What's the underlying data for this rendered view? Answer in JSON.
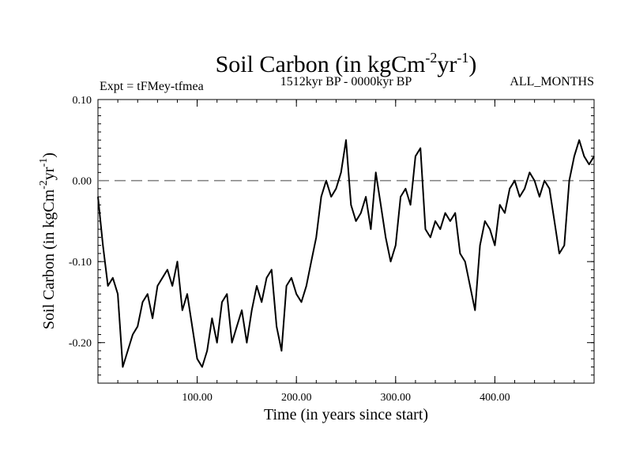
{
  "chart_data": {
    "type": "line",
    "title": "Soil Carbon (in kgCm",
    "title_unit_parts": [
      "-2",
      "yr",
      "-1",
      ")"
    ],
    "subtitle_left": "Expt = tFMey-tfmea",
    "subtitle_center": "1512kyr BP - 0000kyr BP",
    "subtitle_right": "ALL_MONTHS",
    "xlabel": "Time (in years since start)",
    "ylabel_parts": [
      "Soil Carbon (in kgCm",
      "-2",
      "yr",
      "-1",
      ")"
    ],
    "xlim": [
      0,
      500
    ],
    "ylim": [
      -0.25,
      0.1
    ],
    "xticks": [
      100,
      200,
      300,
      400
    ],
    "xtick_labels": [
      "100.00",
      "200.00",
      "300.00",
      "400.00"
    ],
    "yticks": [
      0.1,
      0.0,
      -0.1,
      -0.2
    ],
    "ytick_labels": [
      "0.10",
      "0.00",
      "-0.10",
      "-0.20"
    ],
    "reference_line": {
      "y": 0.0,
      "style": "dashed",
      "color": "#7f7f7f"
    },
    "series": [
      {
        "name": "Soil Carbon",
        "color": "#000000",
        "x": [
          0,
          5,
          10,
          15,
          20,
          25,
          30,
          35,
          40,
          45,
          50,
          55,
          60,
          65,
          70,
          75,
          80,
          85,
          90,
          95,
          100,
          105,
          110,
          115,
          120,
          125,
          130,
          135,
          140,
          145,
          150,
          155,
          160,
          165,
          170,
          175,
          180,
          185,
          190,
          195,
          200,
          205,
          210,
          215,
          220,
          225,
          230,
          235,
          240,
          245,
          250,
          255,
          260,
          265,
          270,
          275,
          280,
          285,
          290,
          295,
          300,
          305,
          310,
          315,
          320,
          325,
          330,
          335,
          340,
          345,
          350,
          355,
          360,
          365,
          370,
          375,
          380,
          385,
          390,
          395,
          400,
          405,
          410,
          415,
          420,
          425,
          430,
          435,
          440,
          445,
          450,
          455,
          460,
          465,
          470,
          475,
          480,
          485,
          490,
          495,
          500
        ],
        "y": [
          -0.02,
          -0.08,
          -0.13,
          -0.12,
          -0.14,
          -0.23,
          -0.21,
          -0.19,
          -0.18,
          -0.15,
          -0.14,
          -0.17,
          -0.13,
          -0.12,
          -0.11,
          -0.13,
          -0.1,
          -0.16,
          -0.14,
          -0.18,
          -0.22,
          -0.23,
          -0.21,
          -0.17,
          -0.2,
          -0.15,
          -0.14,
          -0.2,
          -0.18,
          -0.16,
          -0.2,
          -0.16,
          -0.13,
          -0.15,
          -0.12,
          -0.11,
          -0.18,
          -0.21,
          -0.13,
          -0.12,
          -0.14,
          -0.15,
          -0.13,
          -0.1,
          -0.07,
          -0.02,
          0.0,
          -0.02,
          -0.01,
          0.01,
          0.05,
          -0.03,
          -0.05,
          -0.04,
          -0.02,
          -0.06,
          0.01,
          -0.03,
          -0.07,
          -0.1,
          -0.08,
          -0.02,
          -0.01,
          -0.03,
          0.03,
          0.04,
          -0.06,
          -0.07,
          -0.05,
          -0.06,
          -0.04,
          -0.05,
          -0.04,
          -0.09,
          -0.1,
          -0.13,
          -0.16,
          -0.08,
          -0.05,
          -0.06,
          -0.08,
          -0.03,
          -0.04,
          -0.01,
          0.0,
          -0.02,
          -0.01,
          0.01,
          0.0,
          -0.02,
          0.0,
          -0.01,
          -0.05,
          -0.09,
          -0.08,
          0.0,
          0.03,
          0.05,
          0.03,
          0.02,
          0.03
        ]
      }
    ]
  }
}
